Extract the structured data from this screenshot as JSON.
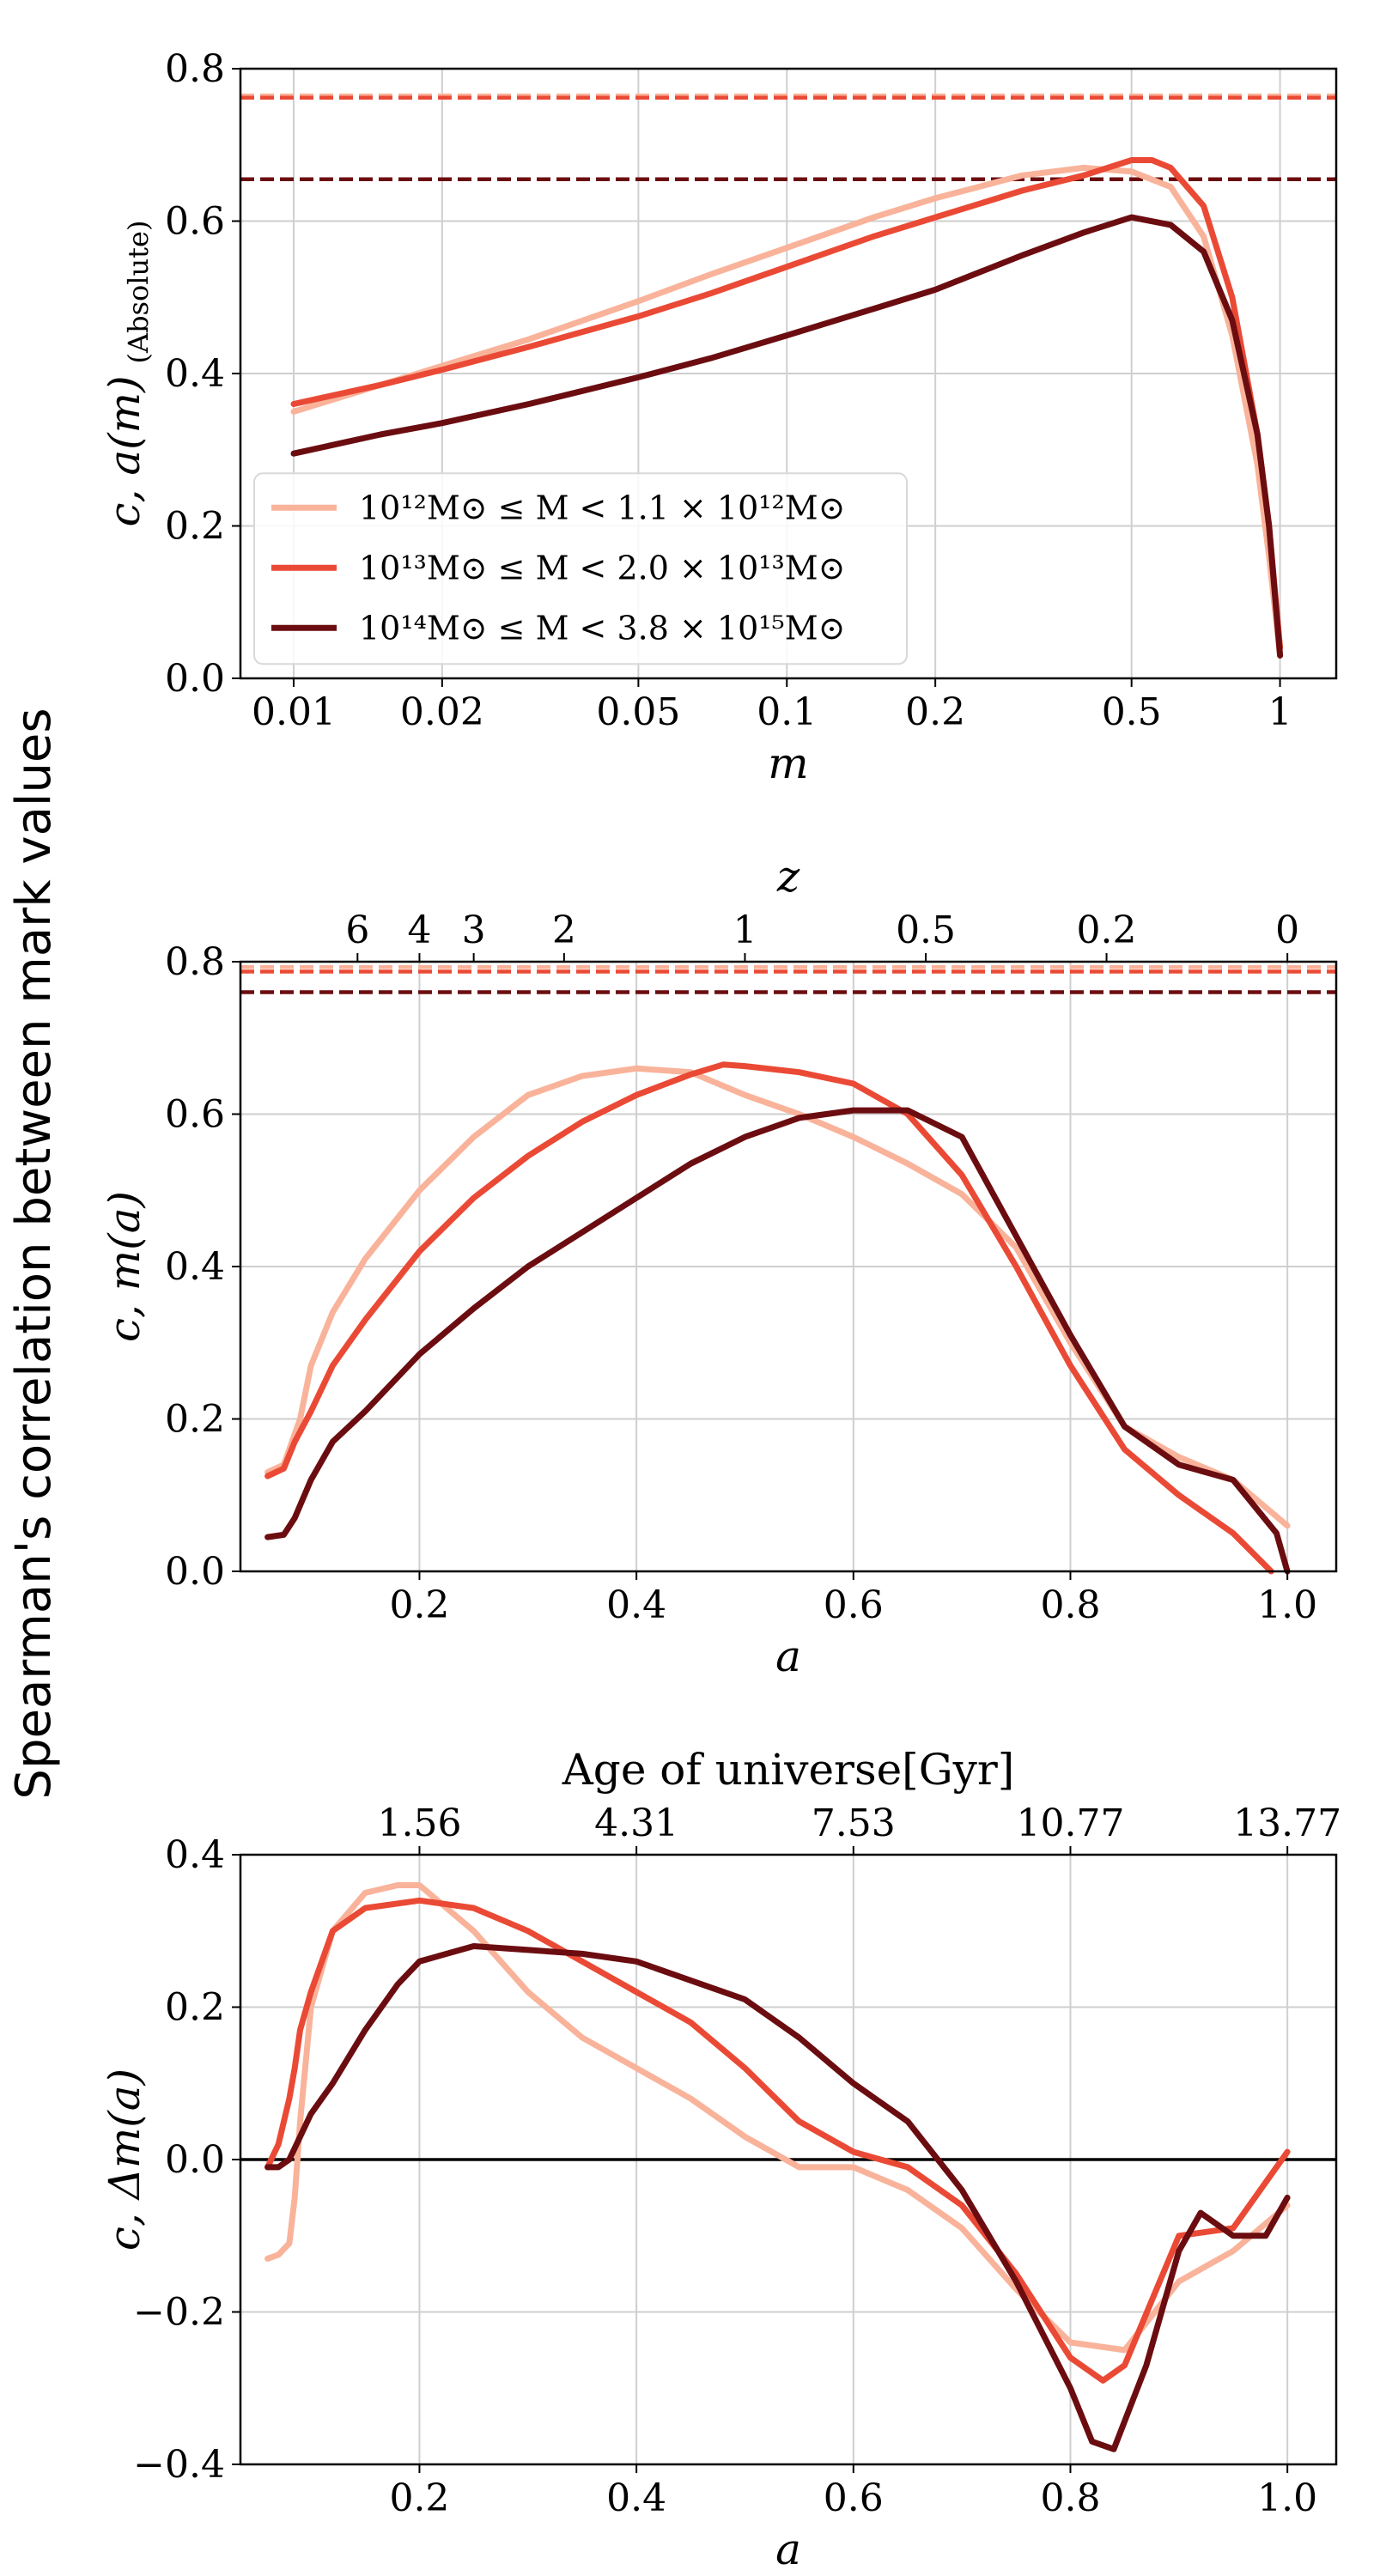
{
  "figure": {
    "y_super_label": "Spearman's correlation between mark values"
  },
  "colors": {
    "light": "#f9b39a",
    "mid": "#ea4a35",
    "dark": "#6b0d10",
    "grid": "#cfcfcf",
    "zero_line": "#000000"
  },
  "chart_data": [
    {
      "type": "line",
      "panel": "top",
      "x_scale": "log",
      "xlabel": "m",
      "ylabel": "c, a(m)",
      "ylabel_subscript": "(Absolute)",
      "xlim": [
        0.0078,
        1.3
      ],
      "ylim": [
        0.0,
        0.8
      ],
      "xticks": [
        0.01,
        0.02,
        0.05,
        0.1,
        0.2,
        0.5,
        1
      ],
      "xtick_labels": [
        "0.01",
        "0.02",
        "0.05",
        "0.1",
        "0.2",
        "0.5",
        "1"
      ],
      "yticks": [
        0.0,
        0.2,
        0.4,
        0.6,
        0.8
      ],
      "ytick_labels": [
        "0.0",
        "0.2",
        "0.4",
        "0.6",
        "0.8"
      ],
      "grid": true,
      "legend_position": "lower-left",
      "legend": [
        {
          "label": "10¹²M⊙ ≤ M < 1.1 × 10¹²M⊙",
          "color": "#f9b39a"
        },
        {
          "label": "10¹³M⊙ ≤ M < 2.0 × 10¹³M⊙",
          "color": "#ea4a35"
        },
        {
          "label": "10¹⁴M⊙ ≤ M < 3.8 × 10¹⁵M⊙",
          "color": "#6b0d10"
        }
      ],
      "hlines": [
        {
          "y": 0.765,
          "color": "#f9b39a",
          "style": "dashed"
        },
        {
          "y": 0.762,
          "color": "#ea4a35",
          "style": "dashed"
        },
        {
          "y": 0.655,
          "color": "#6b0d10",
          "style": "dashed"
        }
      ],
      "series": [
        {
          "color": "#f9b39a",
          "x": [
            0.01,
            0.015,
            0.02,
            0.03,
            0.05,
            0.07,
            0.1,
            0.15,
            0.2,
            0.3,
            0.4,
            0.5,
            0.6,
            0.7,
            0.8,
            0.9,
            0.95,
            1.0
          ],
          "y": [
            0.35,
            0.385,
            0.41,
            0.445,
            0.495,
            0.53,
            0.565,
            0.605,
            0.63,
            0.66,
            0.67,
            0.665,
            0.645,
            0.58,
            0.45,
            0.28,
            0.16,
            0.03
          ]
        },
        {
          "color": "#ea4a35",
          "x": [
            0.01,
            0.015,
            0.02,
            0.03,
            0.05,
            0.07,
            0.1,
            0.15,
            0.2,
            0.3,
            0.4,
            0.5,
            0.55,
            0.6,
            0.7,
            0.8,
            0.9,
            0.95,
            1.0
          ],
          "y": [
            0.36,
            0.385,
            0.405,
            0.435,
            0.475,
            0.505,
            0.54,
            0.58,
            0.605,
            0.64,
            0.66,
            0.68,
            0.68,
            0.67,
            0.62,
            0.5,
            0.32,
            0.2,
            0.04
          ]
        },
        {
          "color": "#6b0d10",
          "x": [
            0.01,
            0.015,
            0.02,
            0.03,
            0.05,
            0.07,
            0.1,
            0.15,
            0.2,
            0.3,
            0.4,
            0.5,
            0.6,
            0.7,
            0.8,
            0.9,
            0.95,
            1.0
          ],
          "y": [
            0.295,
            0.32,
            0.335,
            0.36,
            0.395,
            0.42,
            0.45,
            0.485,
            0.51,
            0.555,
            0.585,
            0.605,
            0.595,
            0.56,
            0.47,
            0.32,
            0.2,
            0.03
          ]
        }
      ]
    },
    {
      "type": "line",
      "panel": "middle",
      "xlabel": "a",
      "ylabel": "c, m(a)",
      "top_axis_label": "z",
      "xlim": [
        0.035,
        1.045
      ],
      "ylim": [
        0.0,
        0.8
      ],
      "xticks": [
        0.2,
        0.4,
        0.6,
        0.8,
        1.0
      ],
      "xtick_labels": [
        "0.2",
        "0.4",
        "0.6",
        "0.8",
        "1.0"
      ],
      "yticks": [
        0.0,
        0.2,
        0.4,
        0.6,
        0.8
      ],
      "ytick_labels": [
        "0.0",
        "0.2",
        "0.4",
        "0.6",
        "0.8"
      ],
      "top_ticks": [
        0.1429,
        0.2,
        0.25,
        0.3333,
        0.5,
        0.6667,
        0.8333,
        1.0
      ],
      "top_tick_labels": [
        "6",
        "4",
        "3",
        "2",
        "1",
        "0.5",
        "0.2",
        "0"
      ],
      "grid": true,
      "hlines": [
        {
          "y": 0.793,
          "color": "#f9b39a",
          "style": "dashed"
        },
        {
          "y": 0.787,
          "color": "#ea4a35",
          "style": "dashed"
        },
        {
          "y": 0.76,
          "color": "#6b0d10",
          "style": "dashed"
        }
      ],
      "series": [
        {
          "color": "#f9b39a",
          "x": [
            0.06,
            0.075,
            0.09,
            0.1,
            0.12,
            0.15,
            0.2,
            0.25,
            0.3,
            0.35,
            0.4,
            0.45,
            0.5,
            0.55,
            0.6,
            0.65,
            0.7,
            0.75,
            0.8,
            0.85,
            0.9,
            0.95,
            1.0
          ],
          "y": [
            0.13,
            0.14,
            0.2,
            0.27,
            0.34,
            0.41,
            0.5,
            0.57,
            0.625,
            0.65,
            0.66,
            0.655,
            0.625,
            0.6,
            0.57,
            0.535,
            0.495,
            0.425,
            0.3,
            0.19,
            0.15,
            0.12,
            0.06
          ]
        },
        {
          "color": "#ea4a35",
          "x": [
            0.06,
            0.075,
            0.085,
            0.1,
            0.12,
            0.15,
            0.2,
            0.25,
            0.3,
            0.35,
            0.4,
            0.45,
            0.48,
            0.5,
            0.55,
            0.6,
            0.65,
            0.7,
            0.75,
            0.8,
            0.85,
            0.9,
            0.95,
            0.985
          ],
          "y": [
            0.125,
            0.135,
            0.17,
            0.21,
            0.27,
            0.33,
            0.42,
            0.49,
            0.545,
            0.59,
            0.625,
            0.652,
            0.665,
            0.663,
            0.655,
            0.64,
            0.6,
            0.52,
            0.4,
            0.27,
            0.16,
            0.1,
            0.05,
            0.0
          ]
        },
        {
          "color": "#6b0d10",
          "x": [
            0.06,
            0.075,
            0.085,
            0.1,
            0.12,
            0.15,
            0.2,
            0.25,
            0.3,
            0.35,
            0.4,
            0.45,
            0.5,
            0.55,
            0.6,
            0.65,
            0.7,
            0.75,
            0.8,
            0.85,
            0.9,
            0.95,
            0.99,
            1.0
          ],
          "y": [
            0.045,
            0.048,
            0.07,
            0.12,
            0.17,
            0.21,
            0.285,
            0.345,
            0.4,
            0.445,
            0.49,
            0.535,
            0.57,
            0.595,
            0.605,
            0.605,
            0.57,
            0.44,
            0.31,
            0.19,
            0.14,
            0.12,
            0.05,
            0.0
          ]
        }
      ]
    },
    {
      "type": "line",
      "panel": "bottom",
      "xlabel": "a",
      "ylabel": "c, Δm(a)",
      "top_axis_label": "Age of universe[Gyr]",
      "xlim": [
        0.035,
        1.045
      ],
      "ylim": [
        -0.4,
        0.4
      ],
      "xticks": [
        0.2,
        0.4,
        0.6,
        0.8,
        1.0
      ],
      "xtick_labels": [
        "0.2",
        "0.4",
        "0.6",
        "0.8",
        "1.0"
      ],
      "yticks": [
        -0.4,
        -0.2,
        0.0,
        0.2,
        0.4
      ],
      "ytick_labels": [
        "−0.4",
        "−0.2",
        "0.0",
        "0.2",
        "0.4"
      ],
      "top_ticks": [
        0.2,
        0.4,
        0.6,
        0.8,
        1.0
      ],
      "top_tick_labels": [
        "1.56",
        "4.31",
        "7.53",
        "10.77",
        "13.77"
      ],
      "zero_line": 0.0,
      "grid": true,
      "series": [
        {
          "color": "#f9b39a",
          "x": [
            0.06,
            0.07,
            0.08,
            0.085,
            0.09,
            0.1,
            0.12,
            0.15,
            0.18,
            0.2,
            0.25,
            0.3,
            0.35,
            0.4,
            0.45,
            0.5,
            0.55,
            0.6,
            0.65,
            0.7,
            0.75,
            0.8,
            0.85,
            0.9,
            0.95,
            1.0
          ],
          "y": [
            -0.13,
            -0.125,
            -0.11,
            -0.05,
            0.05,
            0.2,
            0.3,
            0.35,
            0.36,
            0.36,
            0.3,
            0.22,
            0.16,
            0.12,
            0.08,
            0.03,
            -0.01,
            -0.01,
            -0.04,
            -0.09,
            -0.17,
            -0.24,
            -0.25,
            -0.16,
            -0.12,
            -0.06
          ]
        },
        {
          "color": "#ea4a35",
          "x": [
            0.06,
            0.07,
            0.08,
            0.085,
            0.09,
            0.1,
            0.12,
            0.15,
            0.2,
            0.25,
            0.3,
            0.35,
            0.4,
            0.45,
            0.5,
            0.55,
            0.6,
            0.65,
            0.7,
            0.75,
            0.8,
            0.83,
            0.85,
            0.9,
            0.95,
            1.0
          ],
          "y": [
            -0.01,
            0.02,
            0.08,
            0.12,
            0.17,
            0.22,
            0.3,
            0.33,
            0.34,
            0.33,
            0.3,
            0.26,
            0.22,
            0.18,
            0.12,
            0.05,
            0.01,
            -0.01,
            -0.06,
            -0.15,
            -0.26,
            -0.29,
            -0.27,
            -0.1,
            -0.09,
            0.01
          ]
        },
        {
          "color": "#6b0d10",
          "x": [
            0.06,
            0.07,
            0.08,
            0.1,
            0.12,
            0.15,
            0.18,
            0.2,
            0.25,
            0.3,
            0.35,
            0.4,
            0.45,
            0.5,
            0.55,
            0.6,
            0.65,
            0.7,
            0.75,
            0.8,
            0.82,
            0.84,
            0.87,
            0.9,
            0.92,
            0.95,
            0.98,
            1.0
          ],
          "y": [
            -0.01,
            -0.01,
            0.0,
            0.06,
            0.1,
            0.17,
            0.23,
            0.26,
            0.28,
            0.275,
            0.27,
            0.26,
            0.235,
            0.21,
            0.16,
            0.1,
            0.05,
            -0.04,
            -0.16,
            -0.3,
            -0.37,
            -0.38,
            -0.27,
            -0.12,
            -0.07,
            -0.1,
            -0.1,
            -0.05
          ]
        }
      ]
    }
  ]
}
